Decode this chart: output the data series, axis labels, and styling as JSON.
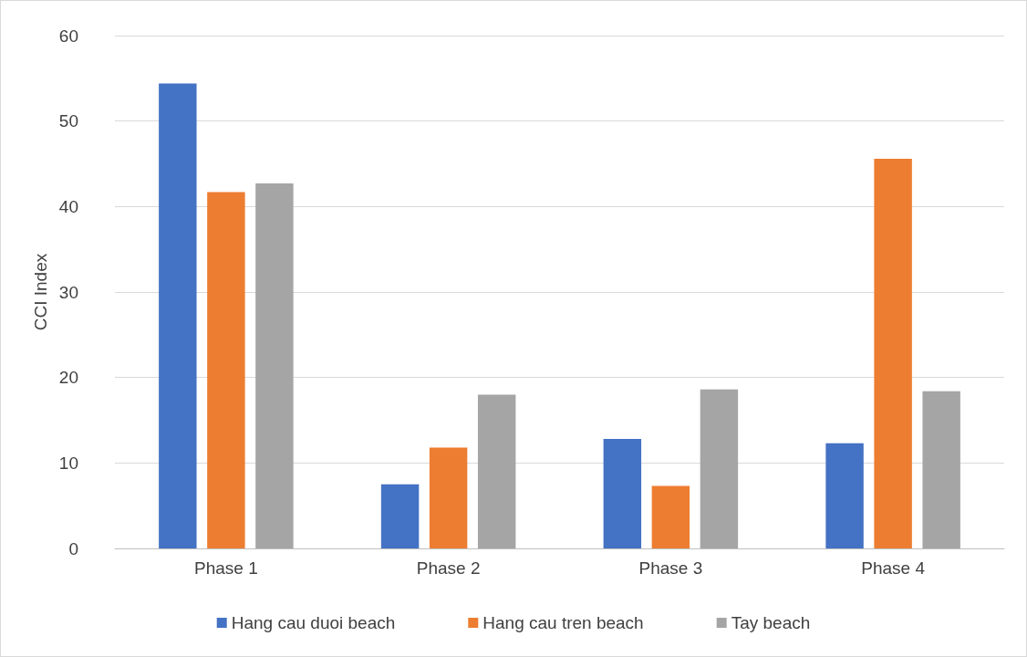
{
  "chart_data": {
    "type": "bar",
    "ylabel": "CCI Index",
    "categories": [
      "Phase 1",
      "Phase 2",
      "Phase 3",
      "Phase 4"
    ],
    "series": [
      {
        "name": "Hang cau duoi beach",
        "color": "#4472c4",
        "values": [
          54.4,
          7.5,
          12.8,
          12.3
        ]
      },
      {
        "name": "Hang cau tren beach",
        "color": "#ed7d31",
        "values": [
          41.7,
          11.8,
          7.3,
          45.6
        ]
      },
      {
        "name": "Tay beach",
        "color": "#a5a5a5",
        "values": [
          42.7,
          18.0,
          18.6,
          18.4
        ]
      }
    ],
    "ylim": [
      0,
      60
    ],
    "yticks": [
      0,
      10,
      20,
      30,
      40,
      50,
      60
    ],
    "grid": "y",
    "legend": "bottom"
  }
}
